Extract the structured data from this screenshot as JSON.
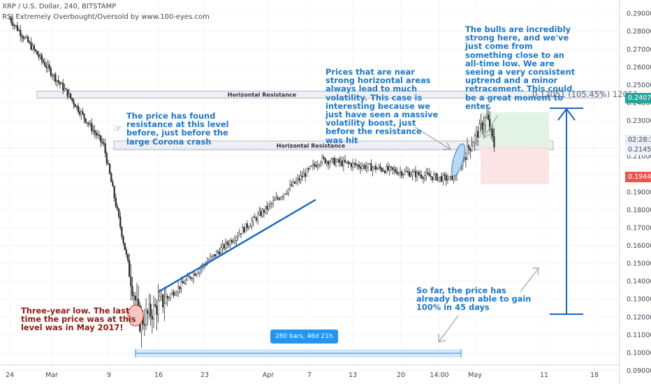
{
  "header": {
    "title": "XRP / U.S. Dollar, 240, BITSTAMP",
    "indicator": "RSI Extremely Overbought/Oversold by www.100-eyes.com"
  },
  "chart_data": {
    "type": "candlestick",
    "symbol": "XRP / U.S. Dollar",
    "interval": "240",
    "exchange": "BITSTAMP",
    "ylim": [
      0.0855,
      0.2975
    ],
    "y_ticks": [
      "0.29000",
      "0.28000",
      "0.27000",
      "0.26000",
      "0.25000",
      "0.24000",
      "0.23000",
      "0.22000",
      "0.21453",
      "0.21000",
      "0.20000",
      "0.19000",
      "0.18000",
      "0.17000",
      "0.16000",
      "0.15000",
      "0.14000",
      "0.13000",
      "0.12000",
      "0.11000",
      "0.10000",
      "0.09000"
    ],
    "x_ticks": [
      "24",
      "Mar",
      "9",
      "16",
      "23",
      "Apr",
      "7",
      "13",
      "20",
      "14:00",
      "May",
      "11",
      "18"
    ],
    "key_points": [
      {
        "date": "Feb 24",
        "price": 0.287
      },
      {
        "date": "Mar 3",
        "price": 0.245
      },
      {
        "date": "Mar 8",
        "price": 0.216
      },
      {
        "date": "Mar 13",
        "price": 0.117
      },
      {
        "date": "Apr 7",
        "price": 0.208
      },
      {
        "date": "Apr 25",
        "price": 0.197
      },
      {
        "date": "Apr 30",
        "price": 0.232
      },
      {
        "date": "May 1",
        "price": 0.216
      }
    ],
    "levels": {
      "current_price": "0.21453",
      "entry_marker": "0.24075",
      "stop_marker": "0.19444",
      "countdown": "02:28:38"
    },
    "resistance_zones": [
      {
        "label": "Horizontal Resistance",
        "from": 0.2425,
        "to": 0.2465
      },
      {
        "label": "Horizontal Resistance",
        "from": 0.2135,
        "to": 0.2185
      }
    ],
    "measure_label": "0.12051 (105.45%) 12051",
    "date_range_label": "280 bars, 46d 21h"
  },
  "annotations": {
    "three_year_low": "Three-year low. The last time the price was at this level was in May 2017!",
    "found_resistance": "The price has found resistance at this level before, just before the large Corona crash",
    "volatility": "Prices that are near strong horizontal areas always lead to much volatility. This case is interesting because we just have seen a massive volatility boost, just before the resistance was hit",
    "bulls": "The bulls are incredibly strong here, and we've just come from something close to an all-time low. We are seeing a very consistent uptrend and a minor retracement. This could be a great moment to enter.",
    "gained": "So far, the price has already been able to gain 100% in 45 days"
  },
  "colors": {
    "annotation_blue": "#1e78c8",
    "annotation_red": "#8c1c12",
    "trendline": "#1565c0",
    "price_green": "#26a69a",
    "price_red": "#ef5350"
  }
}
